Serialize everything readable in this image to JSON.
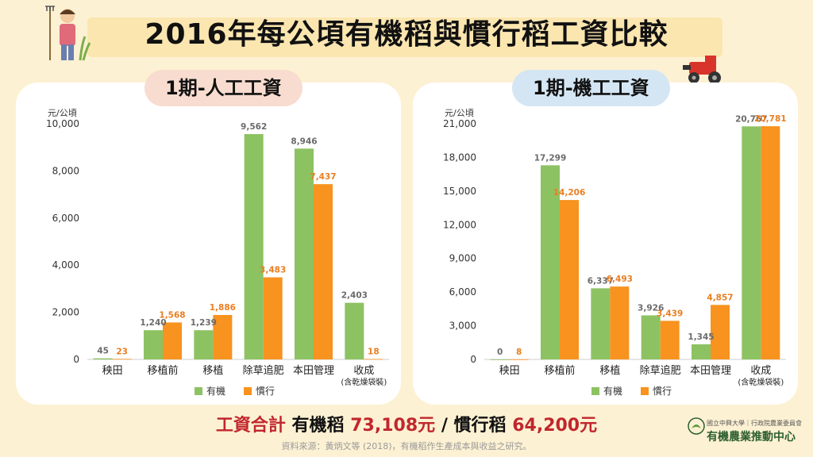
{
  "title": "2016年每公頃有機稻與慣行稻工資比較",
  "colors": {
    "organic": "#8dc262",
    "conventional": "#f7931e",
    "organic_label": "#6b6b6b",
    "conventional_label": "#ea7e21",
    "highlight": "#c1272d"
  },
  "legend": {
    "organic": "有機",
    "conventional": "慣行"
  },
  "chart_data": [
    {
      "type": "bar",
      "title": "1期-人工工資",
      "ylabel": "元/公頃",
      "ylim": [
        0,
        10000
      ],
      "yticks": [
        "0",
        "2,000",
        "4,000",
        "6,000",
        "8,000",
        "10,000"
      ],
      "ytick_values": [
        0,
        2000,
        4000,
        6000,
        8000,
        10000
      ],
      "categories": [
        "秧田",
        "移植前",
        "移植",
        "除草追肥",
        "本田管理",
        "收成"
      ],
      "category_note": "(含乾燥袋裝)",
      "series": [
        {
          "name": "有機",
          "values": [
            45,
            1240,
            1239,
            9562,
            8946,
            2403
          ],
          "labels": [
            "45",
            "1,240",
            "1,239",
            "9,562",
            "8,946",
            "2,403"
          ]
        },
        {
          "name": "慣行",
          "values": [
            23,
            1568,
            1886,
            3483,
            7437,
            18
          ],
          "labels": [
            "23",
            "1,568",
            "1,886",
            "3,483",
            "7,437",
            "18"
          ]
        }
      ]
    },
    {
      "type": "bar",
      "title": "1期-機工工資",
      "ylabel": "元/公頃",
      "ylim": [
        0,
        21000
      ],
      "yticks": [
        "0",
        "3,000",
        "6,000",
        "9,000",
        "12,000",
        "15,000",
        "18,000",
        "21,000"
      ],
      "ytick_values": [
        0,
        3000,
        6000,
        9000,
        12000,
        15000,
        18000,
        21000
      ],
      "categories": [
        "秧田",
        "移植前",
        "移植",
        "除草追肥",
        "本田管理",
        "收成"
      ],
      "category_note": "(含乾燥袋裝)",
      "series": [
        {
          "name": "有機",
          "values": [
            0,
            17299,
            6337,
            3926,
            1345,
            20767
          ],
          "labels": [
            "0",
            "17,299",
            "6,337",
            "3,926",
            "1,345",
            "20,767"
          ]
        },
        {
          "name": "慣行",
          "values": [
            8,
            14206,
            6493,
            3439,
            4857,
            20781
          ],
          "labels": [
            "8",
            "14,206",
            "6,493",
            "3,439",
            "4,857",
            "20,781"
          ]
        }
      ]
    }
  ],
  "total": {
    "label": "工資合計",
    "organic": "有機稻",
    "organic_value": "73,108元",
    "sep": "/",
    "conventional": "慣行稻",
    "conventional_value": "64,200元"
  },
  "source": "資料來源：黃炳文等 (2018)，有機稻作生產成本與收益之研究。",
  "logo": {
    "line1": "國立中興大學｜行政院農業委員會",
    "line2": "有機農業推動中心"
  }
}
